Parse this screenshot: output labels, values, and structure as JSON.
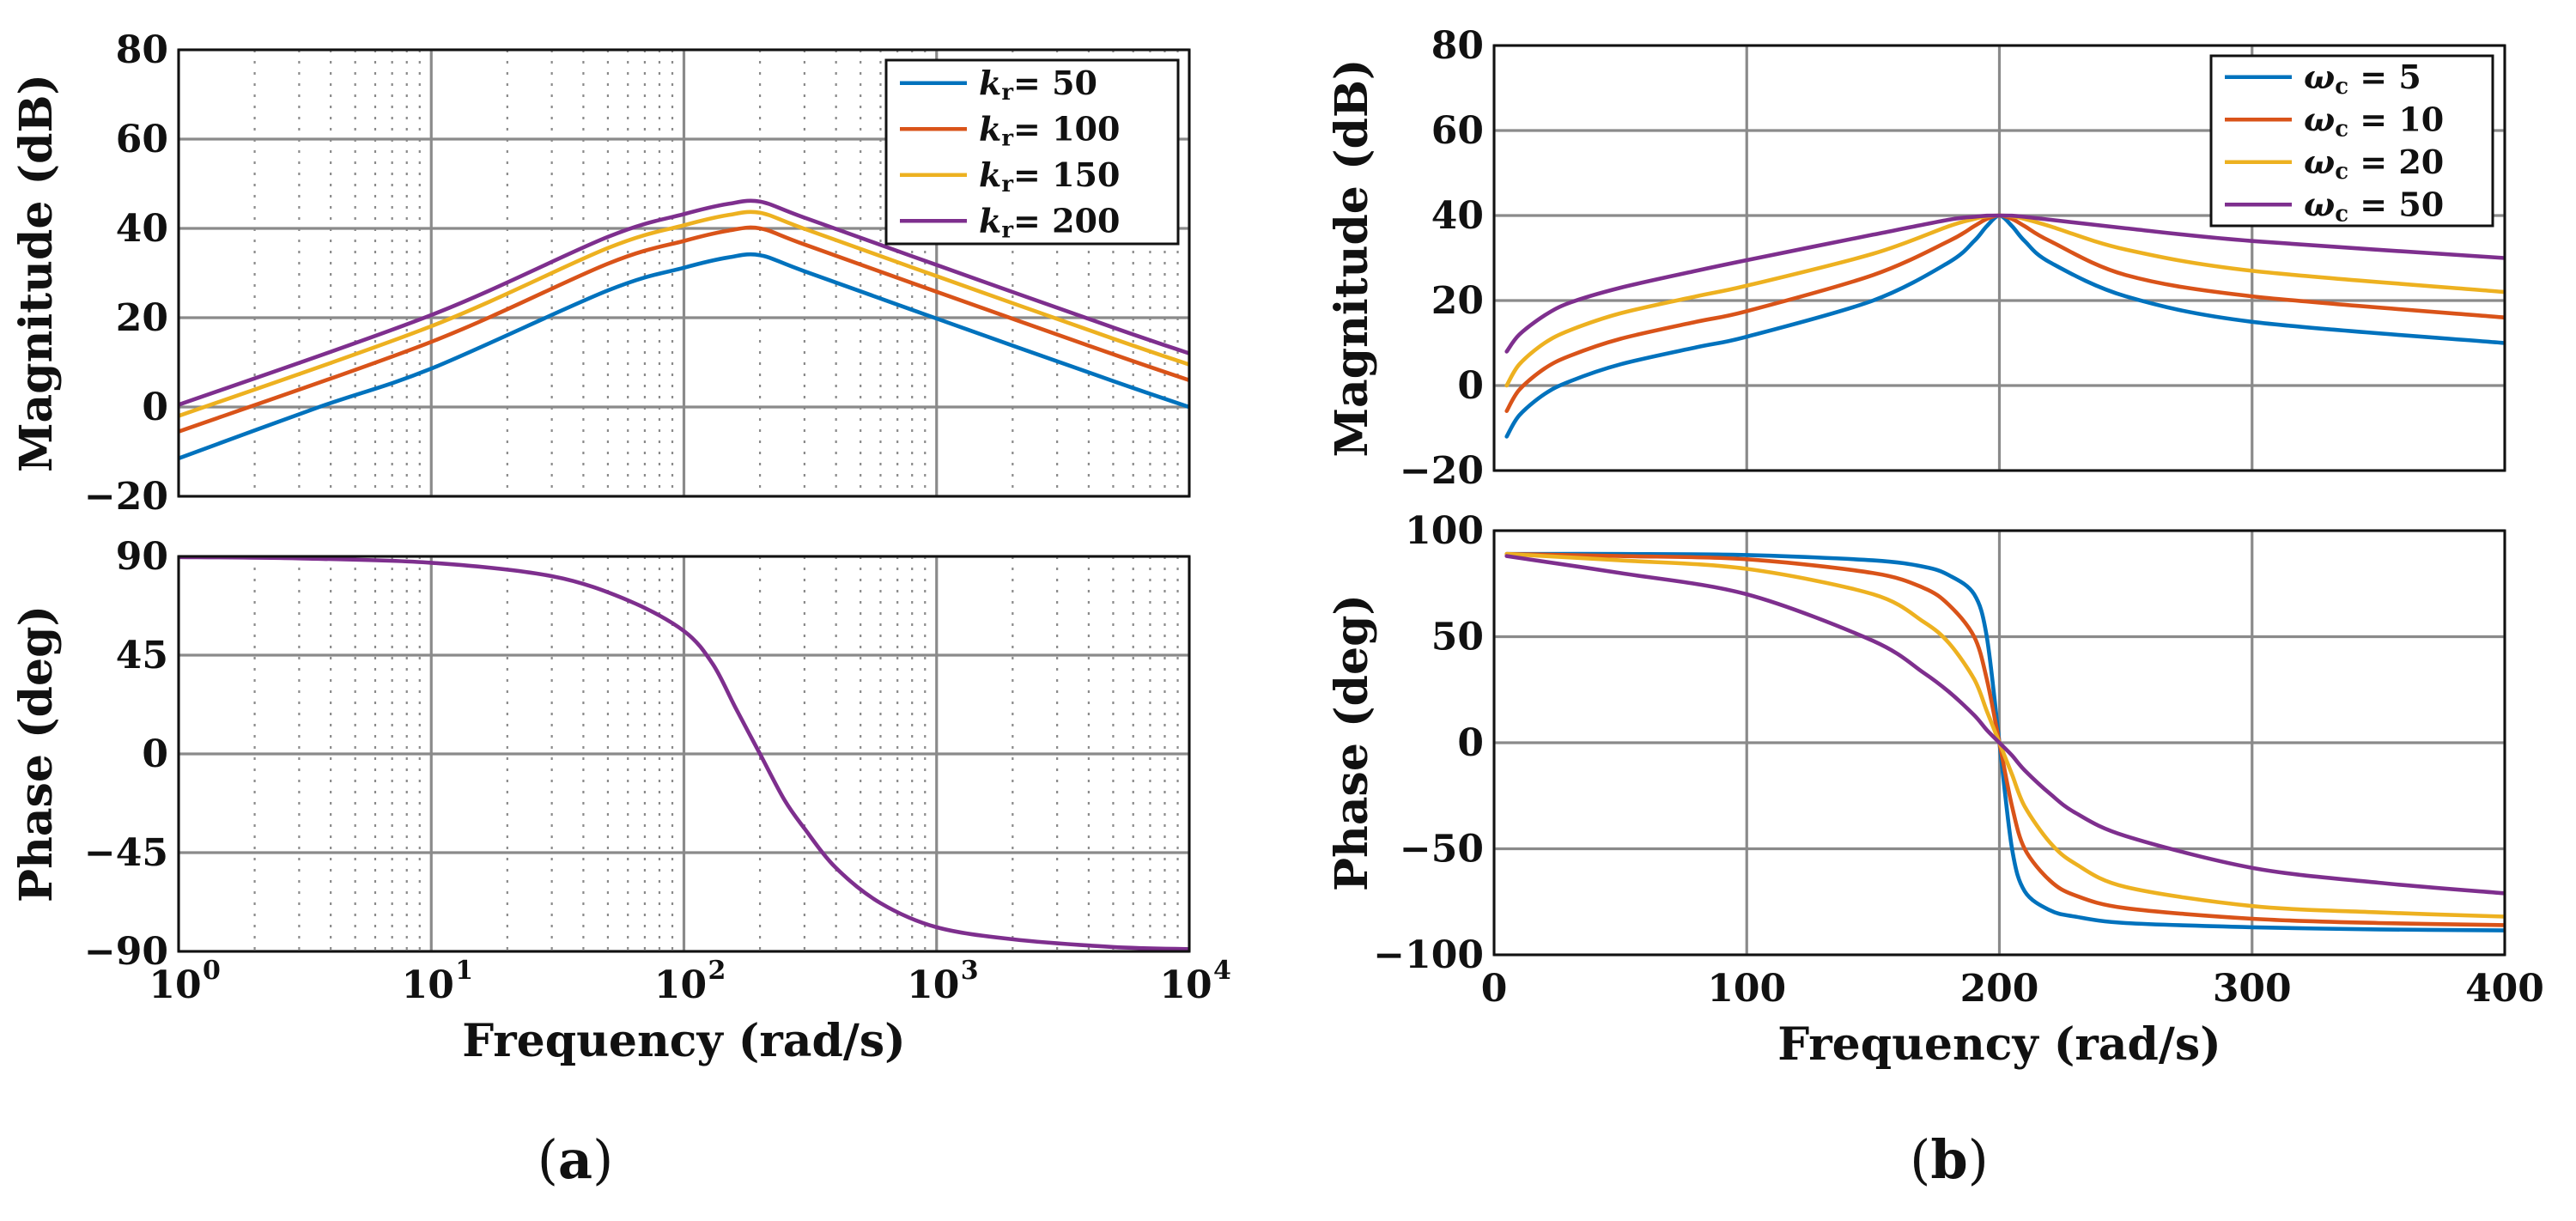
{
  "figure": {
    "caption_a": "a",
    "caption_b": "b"
  },
  "chart_data": [
    {
      "id": "a-mag",
      "type": "line",
      "xscale": "log",
      "xlim": [
        1,
        10000
      ],
      "ylim": [
        -20,
        80
      ],
      "yticks": [
        -20,
        0,
        20,
        40,
        60,
        80
      ],
      "ytick_labels": [
        "−20",
        "0",
        "20",
        "40",
        "60",
        "80"
      ],
      "xticks": [
        1,
        10,
        100,
        1000,
        10000
      ],
      "xtick_labels": [
        {
          "base": "10",
          "exp": "0"
        },
        {
          "base": "10",
          "exp": "1"
        },
        {
          "base": "10",
          "exp": "2"
        },
        {
          "base": "10",
          "exp": "3"
        },
        {
          "base": "10",
          "exp": "4"
        }
      ],
      "show_xtick_labels": false,
      "grid": true,
      "ylabel": "Magnitude (dB)",
      "xlabel": "",
      "legend_position": "top-right",
      "legend_symbol": "k",
      "legend_sub": "r",
      "legend_sep": "= ",
      "series": [
        {
          "name": "50",
          "color": "#0072BD",
          "x": [
            1,
            3.6,
            10,
            50,
            100,
            150,
            200,
            300,
            1000,
            5000,
            10000
          ],
          "y": [
            -11.5,
            0,
            8.6,
            26.1,
            31.2,
            33.5,
            34,
            30.4,
            19.8,
            5.8,
            0
          ]
        },
        {
          "name": "100",
          "color": "#D95319",
          "x": [
            1,
            10,
            50,
            100,
            150,
            200,
            300,
            1000,
            5000,
            10000
          ],
          "y": [
            -5.5,
            14.6,
            32.1,
            37.2,
            39.5,
            40,
            36.4,
            25.8,
            11.8,
            6
          ]
        },
        {
          "name": "150",
          "color": "#EDB120",
          "x": [
            1,
            10,
            50,
            100,
            150,
            200,
            300,
            1000,
            5000,
            10000
          ],
          "y": [
            -2,
            18.1,
            35.6,
            40.7,
            43,
            43.5,
            39.9,
            29.3,
            15.3,
            9.5
          ]
        },
        {
          "name": "200",
          "color": "#7E2F8E",
          "x": [
            1,
            10,
            50,
            100,
            150,
            200,
            300,
            1000,
            5000,
            10000
          ],
          "y": [
            0.5,
            20.6,
            38.1,
            43.2,
            45.5,
            46,
            42.4,
            31.8,
            17.8,
            12
          ]
        }
      ]
    },
    {
      "id": "a-phase",
      "type": "line",
      "xscale": "log",
      "xlim": [
        1,
        10000
      ],
      "ylim": [
        -90,
        90
      ],
      "yticks": [
        -90,
        -45,
        0,
        45,
        90
      ],
      "ytick_labels": [
        "−90",
        "−45",
        "0",
        "45",
        "90"
      ],
      "xticks": [
        1,
        10,
        100,
        1000,
        10000
      ],
      "xtick_labels": [
        {
          "base": "10",
          "exp": "0"
        },
        {
          "base": "10",
          "exp": "1"
        },
        {
          "base": "10",
          "exp": "2"
        },
        {
          "base": "10",
          "exp": "3"
        },
        {
          "base": "10",
          "exp": "4"
        }
      ],
      "show_xtick_labels": true,
      "grid": true,
      "ylabel": "Phase (deg)",
      "xlabel": "Frequency  (rad/s)",
      "series": [
        {
          "name": "phase",
          "color": "#7E2F8E",
          "x": [
            1,
            3,
            10,
            30,
            60,
            100,
            130,
            160,
            200,
            250,
            300,
            400,
            600,
            1000,
            2000,
            5000,
            10000
          ],
          "y": [
            89.7,
            89.1,
            87.1,
            81,
            70,
            56,
            41,
            21,
            0,
            -21,
            -34,
            -52,
            -68,
            -79,
            -84.5,
            -88,
            -89
          ]
        }
      ]
    },
    {
      "id": "b-mag",
      "type": "line",
      "xscale": "linear",
      "xlim": [
        0,
        400
      ],
      "ylim": [
        -20,
        80
      ],
      "yticks": [
        -20,
        0,
        20,
        40,
        60,
        80
      ],
      "ytick_labels": [
        "−20",
        "0",
        "20",
        "40",
        "60",
        "80"
      ],
      "xticks": [
        0,
        100,
        200,
        300,
        400
      ],
      "xtick_labels": [
        "0",
        "100",
        "200",
        "300",
        "400"
      ],
      "show_xtick_labels": false,
      "grid": true,
      "ylabel": "Magnitude (dB)",
      "xlabel": "",
      "legend_position": "top-right",
      "legend_symbol": "ω",
      "legend_sub": "c",
      "legend_sep": "  = ",
      "series": [
        {
          "name": "5",
          "color": "#0072BD",
          "x": [
            5,
            10,
            20,
            30,
            50,
            80,
            100,
            150,
            180,
            190,
            195,
            200,
            205,
            210,
            220,
            250,
            300,
            400
          ],
          "y": [
            -12,
            -7,
            -2,
            1,
            5,
            9,
            11.5,
            20,
            29,
            34,
            37.5,
            40,
            37.5,
            34,
            29,
            21,
            15,
            10
          ]
        },
        {
          "name": "10",
          "color": "#D95319",
          "x": [
            5,
            10,
            20,
            30,
            50,
            80,
            100,
            150,
            180,
            190,
            195,
            200,
            205,
            210,
            220,
            250,
            300,
            400
          ],
          "y": [
            -6,
            -1,
            4,
            7,
            11,
            15,
            17.5,
            26,
            34,
            37.5,
            39.2,
            40,
            39.2,
            37.5,
            34,
            26,
            21,
            16
          ]
        },
        {
          "name": "20",
          "color": "#EDB120",
          "x": [
            5,
            10,
            20,
            30,
            50,
            80,
            100,
            150,
            180,
            190,
            195,
            200,
            205,
            210,
            220,
            250,
            300,
            400
          ],
          "y": [
            0,
            5,
            10,
            13,
            17,
            21,
            23.5,
            31,
            37.5,
            39.2,
            39.8,
            40,
            39.8,
            39.2,
            37.5,
            32,
            27,
            22
          ]
        },
        {
          "name": "50",
          "color": "#7E2F8E",
          "x": [
            5,
            10,
            20,
            30,
            50,
            80,
            100,
            150,
            180,
            190,
            195,
            200,
            205,
            210,
            220,
            250,
            300,
            400
          ],
          "y": [
            8,
            12,
            16.5,
            19.5,
            23,
            27,
            29.5,
            35.5,
            39,
            39.7,
            39.95,
            40,
            39.95,
            39.7,
            39,
            37,
            34,
            30
          ]
        }
      ]
    },
    {
      "id": "b-phase",
      "type": "line",
      "xscale": "linear",
      "xlim": [
        0,
        400
      ],
      "ylim": [
        -100,
        100
      ],
      "yticks": [
        -100,
        -50,
        0,
        50,
        100
      ],
      "ytick_labels": [
        "−100",
        "−50",
        "0",
        "50",
        "100"
      ],
      "xticks": [
        0,
        100,
        200,
        300,
        400
      ],
      "xtick_labels": [
        "0",
        "100",
        "200",
        "300",
        "400"
      ],
      "show_xtick_labels": true,
      "grid": true,
      "ylabel": "Phase (deg)",
      "xlabel": "Frequency (rad/s)",
      "series": [
        {
          "name": "5",
          "color": "#0072BD",
          "x": [
            5,
            50,
            100,
            150,
            170,
            180,
            190,
            195,
            200,
            205,
            210,
            220,
            230,
            250,
            300,
            350,
            400
          ],
          "y": [
            89,
            89,
            88.5,
            86,
            83,
            79,
            70,
            50,
            0,
            -50,
            -70,
            -79,
            -82,
            -85,
            -87,
            -88,
            -88.5
          ]
        },
        {
          "name": "10",
          "color": "#D95319",
          "x": [
            5,
            50,
            100,
            150,
            170,
            180,
            190,
            195,
            200,
            205,
            210,
            220,
            230,
            250,
            300,
            350,
            400
          ],
          "y": [
            89,
            88,
            86.5,
            80,
            73,
            65,
            50,
            30,
            0,
            -30,
            -50,
            -65,
            -72,
            -78,
            -83,
            -85,
            -86
          ]
        },
        {
          "name": "20",
          "color": "#EDB120",
          "x": [
            5,
            50,
            100,
            150,
            170,
            180,
            190,
            195,
            200,
            205,
            210,
            220,
            230,
            250,
            300,
            350,
            400
          ],
          "y": [
            89,
            86,
            82,
            70,
            57,
            47,
            30,
            15,
            0,
            -15,
            -30,
            -47,
            -57,
            -68,
            -77,
            -80,
            -82
          ]
        },
        {
          "name": "50",
          "color": "#7E2F8E",
          "x": [
            5,
            50,
            100,
            150,
            170,
            180,
            190,
            195,
            200,
            205,
            210,
            220,
            230,
            250,
            300,
            350,
            400
          ],
          "y": [
            88,
            80,
            70,
            48,
            33,
            24,
            13,
            6,
            0,
            -6,
            -13,
            -24,
            -33,
            -44,
            -59,
            -66,
            -71
          ]
        }
      ]
    }
  ]
}
